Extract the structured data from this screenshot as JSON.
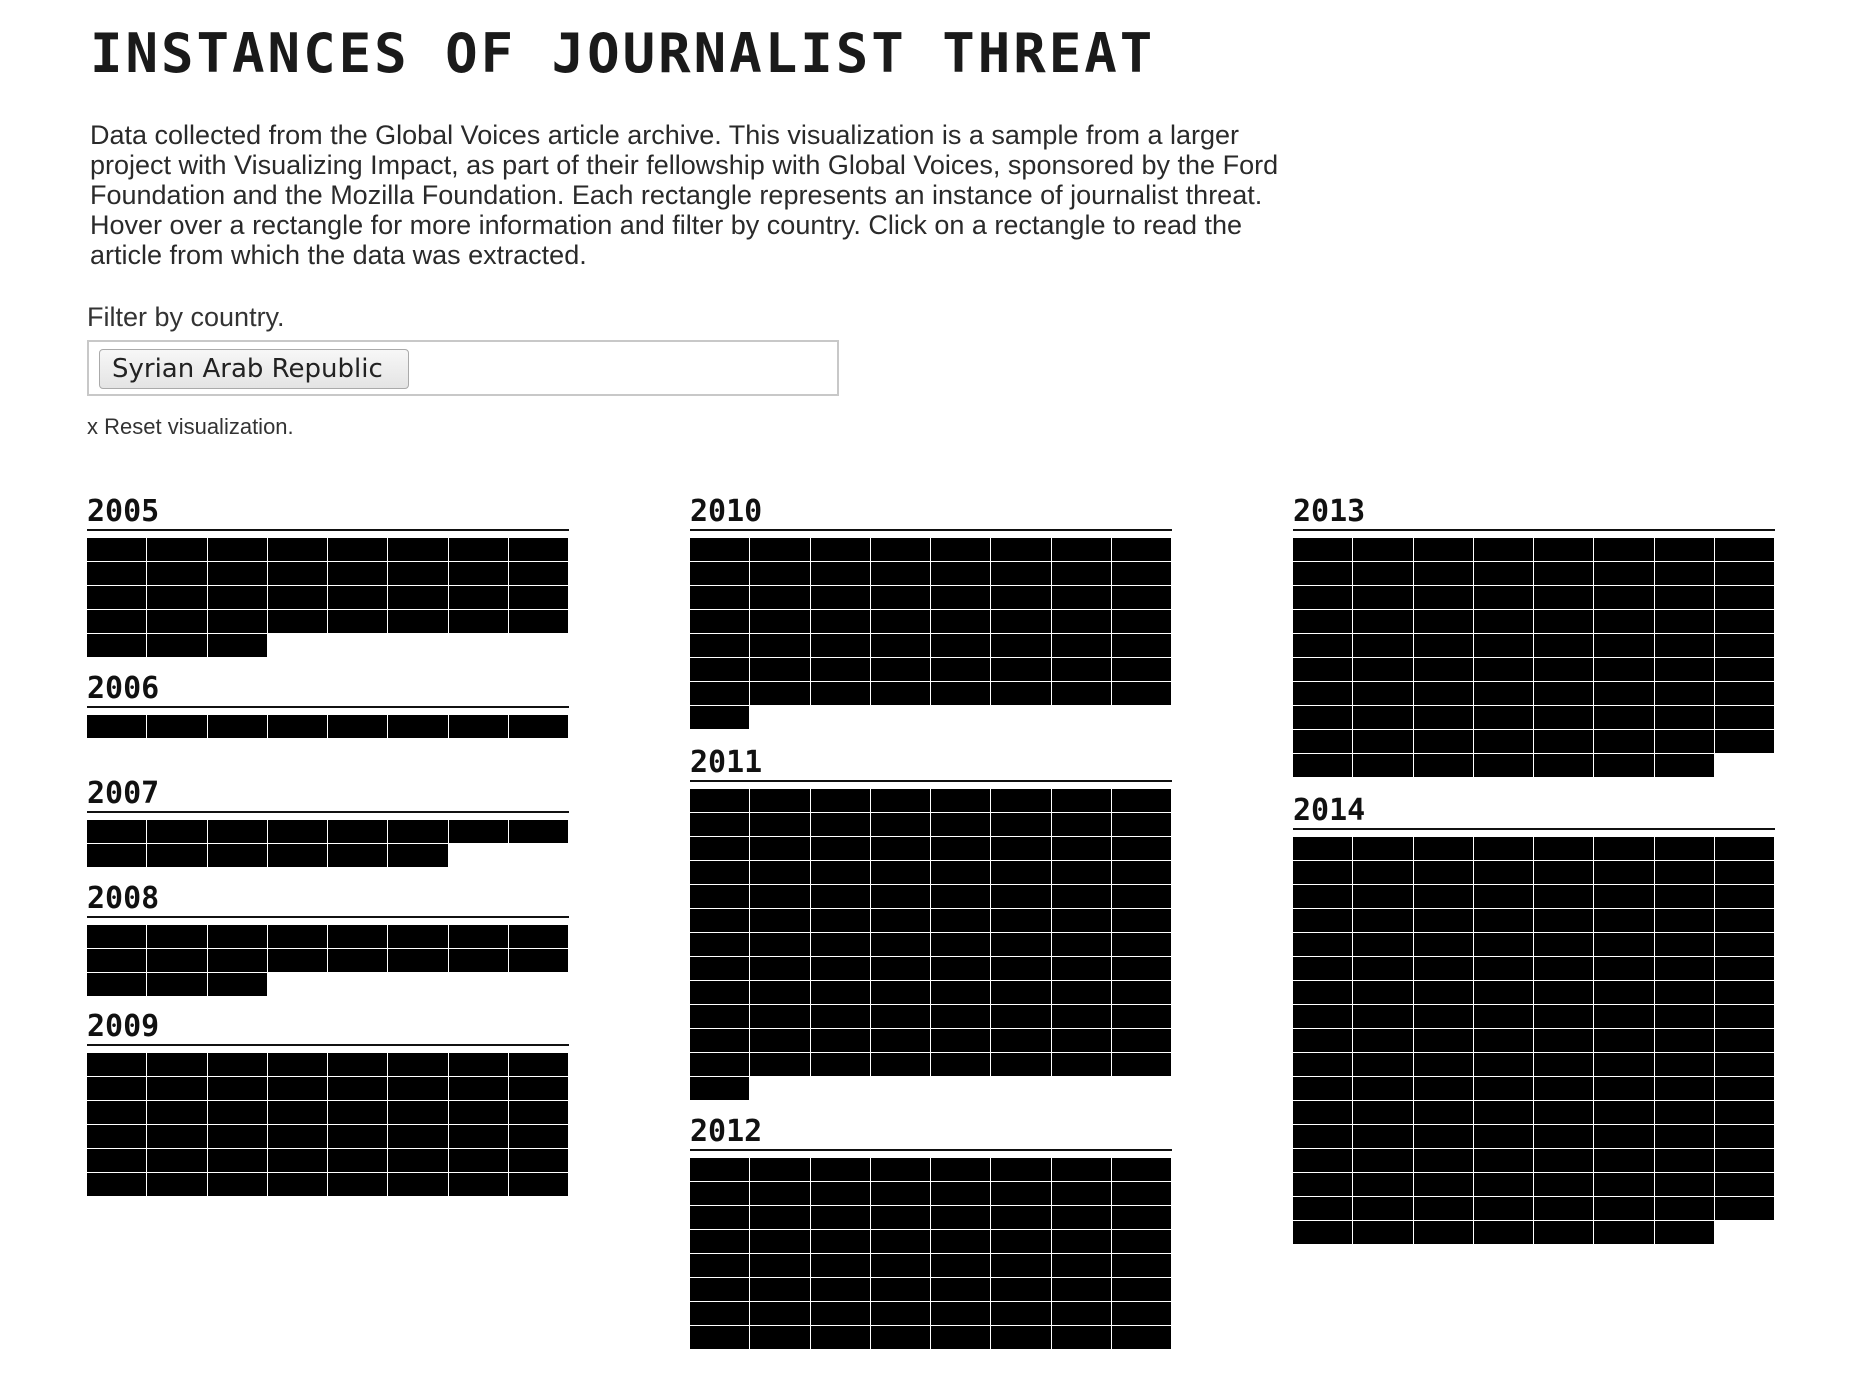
{
  "header": {
    "title": "INSTANCES OF JOURNALIST THREAT",
    "description": "Data collected from the Global Voices article archive. This visualization is a sample from a larger project with Visualizing Impact, as part of their fellowship with Global Voices, sponsored by the Ford Foundation and the Mozilla Foundation. Each rectangle represents an instance of journalist threat. Hover over a rectangle for more information and filter by country. Click on a rectangle to read the article from which the data was extracted."
  },
  "filter": {
    "label": "Filter by country.",
    "selected_country": "Syrian Arab Republic",
    "reset_label": "x Reset visualization."
  },
  "colors": {
    "cell": "#000000",
    "background": "#ffffff"
  },
  "years": [
    {
      "year": "2005",
      "count": 35
    },
    {
      "year": "2006",
      "count": 8
    },
    {
      "year": "2007",
      "count": 14
    },
    {
      "year": "2008",
      "count": 19
    },
    {
      "year": "2009",
      "count": 48
    },
    {
      "year": "2010",
      "count": 57
    },
    {
      "year": "2011",
      "count": 97
    },
    {
      "year": "2012",
      "count": 64
    },
    {
      "year": "2013",
      "count": 79
    },
    {
      "year": "2014",
      "count": 135
    }
  ]
}
